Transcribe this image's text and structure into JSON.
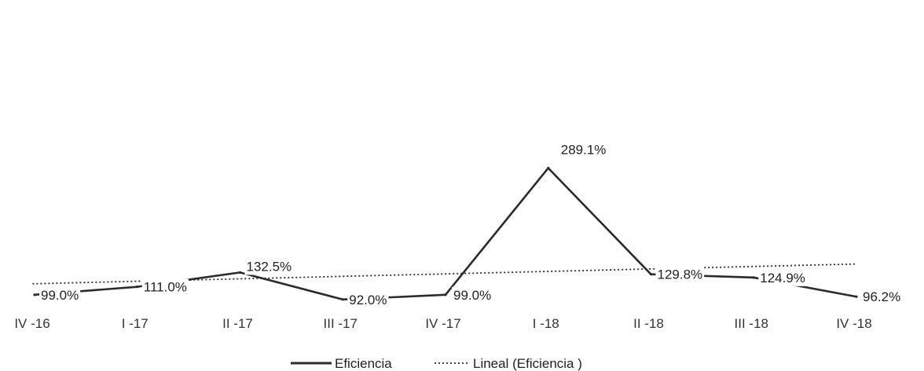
{
  "chart_data": {
    "type": "line",
    "categories": [
      "IV -16",
      "I -17",
      "II -17",
      "III -17",
      "IV -17",
      "I -18",
      "II -18",
      "III -18",
      "IV -18"
    ],
    "series": [
      {
        "name": "Eficiencia",
        "values": [
          99.0,
          111.0,
          132.5,
          92.0,
          99.0,
          289.1,
          129.8,
          124.9,
          96.2
        ],
        "data_labels": [
          "99.0%",
          "111.0%",
          "132.5%",
          "92.0%",
          "99.0%",
          "289.1%",
          "129.8%",
          "124.9%",
          "96.2%"
        ],
        "style": "solid",
        "color": "#2b2b2b"
      },
      {
        "name": "Lineal (Eficiencia )",
        "trendline_of": "Eficiencia",
        "trendline_type": "linear",
        "style": "dotted",
        "color": "#2b2b2b"
      }
    ],
    "title": "",
    "xlabel": "",
    "ylabel": "",
    "ylim": [
      0,
      300
    ],
    "unit": "%",
    "grid": false,
    "y_axis_shown": false,
    "legend_position": "bottom-center"
  }
}
